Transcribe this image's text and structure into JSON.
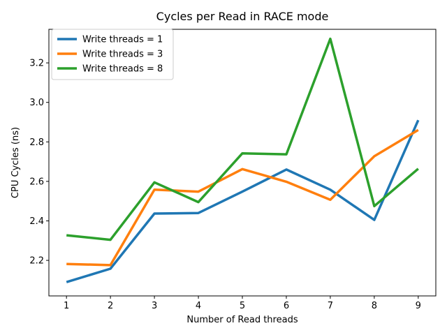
{
  "chart_data": {
    "type": "line",
    "title": "Cycles per Read in RACE mode",
    "xlabel": "Number of Read threads",
    "ylabel": "CPU Cycles (ns)",
    "x": [
      1,
      2,
      3,
      4,
      5,
      6,
      7,
      8,
      9
    ],
    "xlim": [
      0.6,
      9.4
    ],
    "ylim": [
      2.02,
      3.37
    ],
    "xticks": [
      "1",
      "2",
      "3",
      "4",
      "5",
      "6",
      "7",
      "8",
      "9"
    ],
    "yticks": [
      "2.2",
      "2.4",
      "2.6",
      "2.8",
      "3.0",
      "3.2"
    ],
    "grid": false,
    "legend_position": "top-left",
    "series": [
      {
        "name": "Write threads = 1",
        "color": "#1f77b4",
        "values": [
          2.09,
          2.158,
          2.437,
          2.44,
          2.548,
          2.66,
          2.558,
          2.405,
          2.91
        ]
      },
      {
        "name": "Write threads = 3",
        "color": "#ff7f0e",
        "values": [
          2.182,
          2.176,
          2.558,
          2.548,
          2.662,
          2.598,
          2.507,
          2.727,
          2.86
        ]
      },
      {
        "name": "Write threads = 8",
        "color": "#2ca02c",
        "values": [
          2.327,
          2.304,
          2.595,
          2.495,
          2.742,
          2.737,
          3.322,
          2.475,
          2.664
        ]
      }
    ]
  }
}
